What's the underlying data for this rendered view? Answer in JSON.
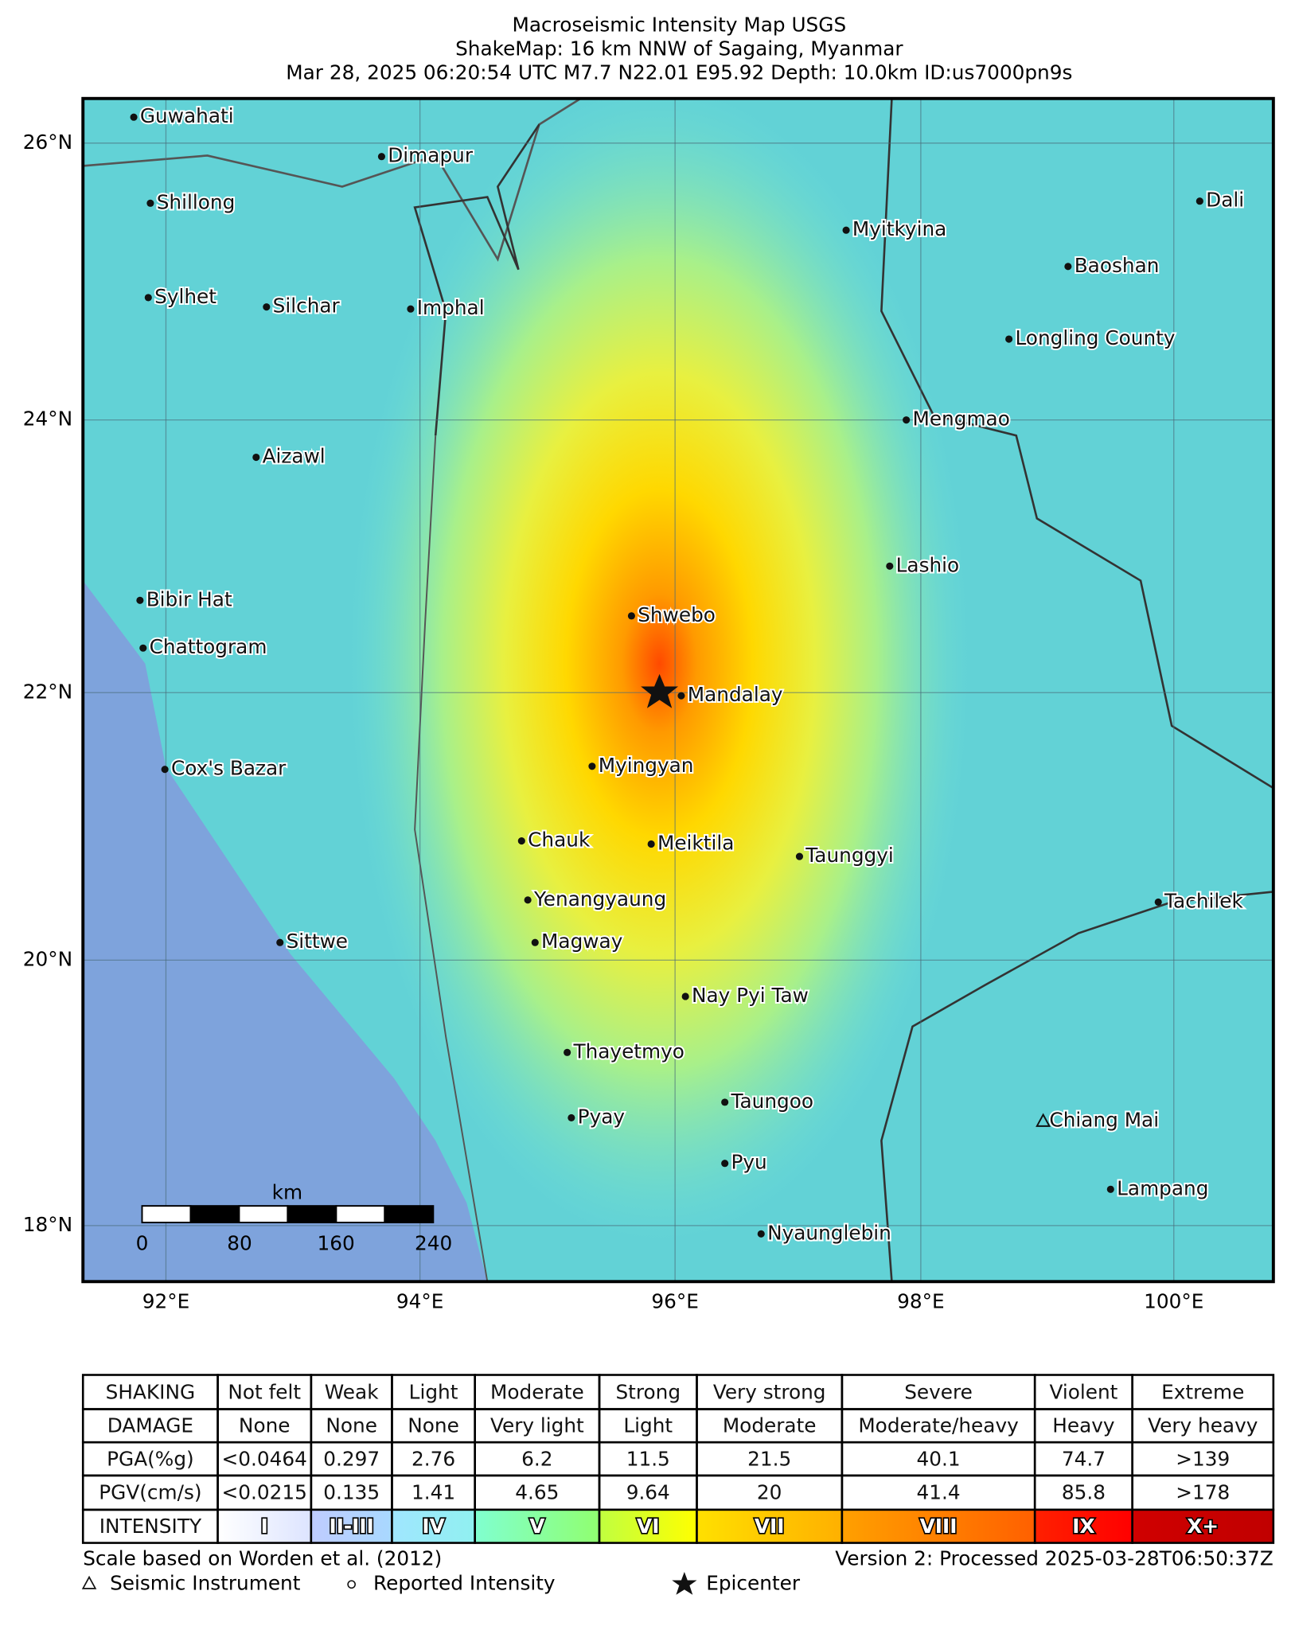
{
  "title": [
    "Macroseismic Intensity Map USGS",
    "ShakeMap: 16 km NNW of Sagaing, Myanmar",
    "Mar 28, 2025 06:20:54 UTC M7.7 N22.01 E95.92 Depth: 10.0km ID:us7000pn9s"
  ],
  "map": {
    "lat_ticks": [
      "26°N",
      "24°N",
      "22°N",
      "20°N",
      "18°N"
    ],
    "lon_ticks": [
      "92°E",
      "94°E",
      "96°E",
      "98°E",
      "100°E"
    ],
    "cities": [
      "Guwahati",
      "Dimapur",
      "Shillong",
      "Myitkyina",
      "Dali",
      "Baoshan",
      "Sylhet",
      "Silchar",
      "Imphal",
      "Longling County",
      "Mengmao",
      "Aizawl",
      "Lashio",
      "Bibir Hat",
      "Shwebo",
      "Chattogram",
      "Mandalay",
      "Cox's Bazar",
      "Myingyan",
      "Chauk",
      "Meiktila",
      "Taunggyi",
      "Yenangyaung",
      "Tachilek",
      "Sittwe",
      "Magway",
      "Nay Pyi Taw",
      "Thayetmyo",
      "Taungoo",
      "Chiang Mai",
      "Pyay",
      "Pyu",
      "Lampang",
      "Nyaunglebin"
    ],
    "scale": {
      "unit": "km",
      "labels": [
        0,
        80,
        160,
        240
      ]
    }
  },
  "table": {
    "rows": [
      [
        "SHAKING",
        "Not felt",
        "Weak",
        "Light",
        "Moderate",
        "Strong",
        "Very strong",
        "Severe",
        "Violent",
        "Extreme"
      ],
      [
        "DAMAGE",
        "None",
        "None",
        "None",
        "Very light",
        "Light",
        "Moderate",
        "Moderate/heavy",
        "Heavy",
        "Very heavy"
      ],
      [
        "PGA(%g)",
        "<0.0464",
        "0.297",
        "2.76",
        "6.2",
        "11.5",
        "21.5",
        "40.1",
        "74.7",
        ">139"
      ],
      [
        "PGV(cm/s)",
        "<0.0215",
        "0.135",
        "1.41",
        "4.65",
        "9.64",
        "20",
        "41.4",
        "85.8",
        ">178"
      ],
      [
        "INTENSITY",
        "I",
        "II-III",
        "IV",
        "V",
        "VI",
        "VII",
        "VIII",
        "IX",
        "X+"
      ]
    ]
  },
  "footer": {
    "scale_note": "Scale based on Worden et al. (2012)",
    "version": "Version 2: Processed 2025-03-28T06:50:37Z",
    "legend": [
      "Seismic Instrument",
      "Reported Intensity",
      "Epicenter"
    ]
  }
}
